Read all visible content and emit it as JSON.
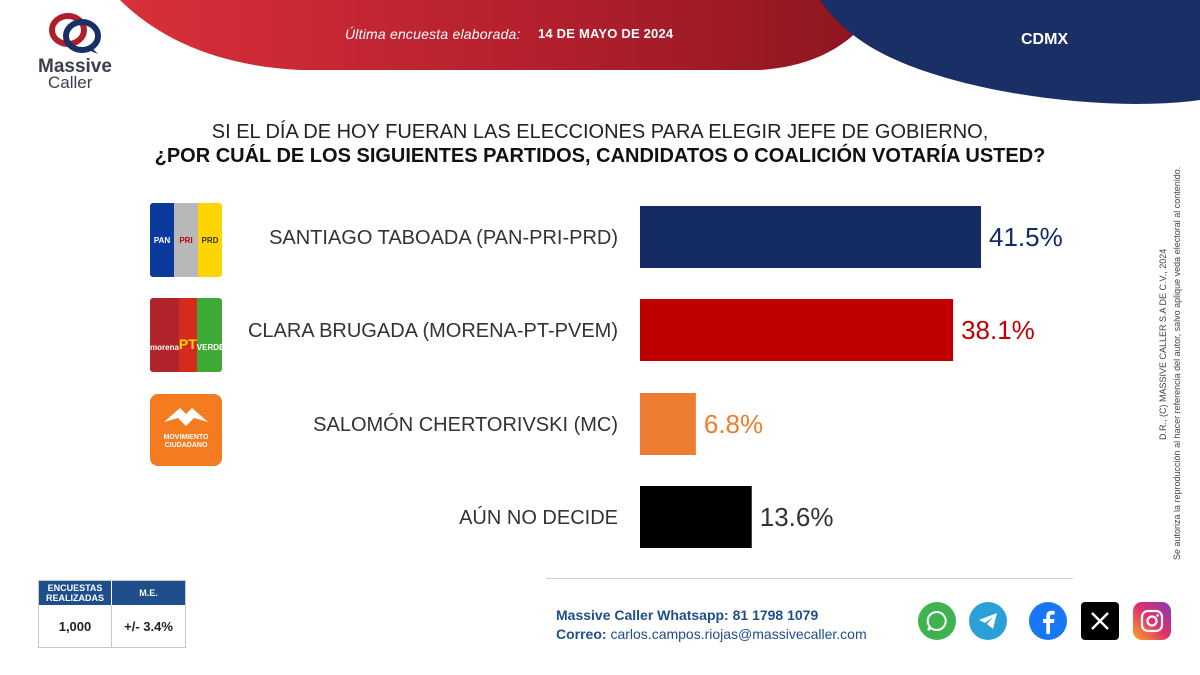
{
  "header": {
    "label": "Última encuesta elaborada:",
    "date": "14 DE MAYO DE 2024",
    "region": "CDMX"
  },
  "brand": {
    "line1": "Massive",
    "line2": "Caller"
  },
  "question": {
    "line1": "SI EL DÍA DE HOY FUERAN LAS ELECCIONES PARA ELEGIR JEFE DE GOBIERNO,",
    "line2": "¿POR CUÁL DE LOS SIGUIENTES PARTIDOS, CANDIDATOS O COALICIÓN VOTARÍA USTED?"
  },
  "party_logos": {
    "pan": "PAN",
    "pri": "PRI",
    "prd": "PRD",
    "morena": "morena",
    "pt": "PT",
    "verde": "VERDE",
    "mc_line1": "MOVIMIENTO",
    "mc_line2": "CIUDADANO"
  },
  "chart_data": {
    "type": "bar",
    "orientation": "horizontal",
    "categories": [
      "SANTIAGO TABOADA (PAN-PRI-PRD)",
      "CLARA BRUGADA (MORENA-PT-PVEM)",
      "SALOMÓN CHERTORIVSKI (MC)",
      "AÚN NO DECIDE"
    ],
    "values": [
      41.5,
      38.1,
      6.8,
      13.6
    ],
    "value_labels": [
      "41.5%",
      "38.1%",
      "6.8%",
      "13.6%"
    ],
    "colors": [
      "#132a63",
      "#c00000",
      "#ed7d31",
      "#000000"
    ],
    "xlim": [
      0,
      50
    ],
    "grid": false,
    "legend": "none"
  },
  "stats": {
    "header1": "ENCUESTAS REALIZADAS",
    "header2": "M.E.",
    "value1": "1,000",
    "value2": "+/- 3.4%"
  },
  "contact": {
    "whatsapp": "Massive Caller Whatsapp: 81 1798 1079",
    "email_label": "Correo:",
    "email": "carlos.campos.riojas@massivecaller.com"
  },
  "legal": {
    "line1": "D.R., (C) MASSIVE CALLER S.A DE C.V., 2024",
    "line2": "Se autoriza la reproducción al hacer referencia del autor, salvo aplique veda electoral al contenido."
  },
  "social_icons": [
    "whatsapp-icon",
    "telegram-icon",
    "facebook-icon",
    "x-icon",
    "instagram-icon"
  ],
  "colors": {
    "header_red": "#b01e2c",
    "header_navy": "#1a2f66",
    "accent_blue": "#1f4e8c"
  }
}
